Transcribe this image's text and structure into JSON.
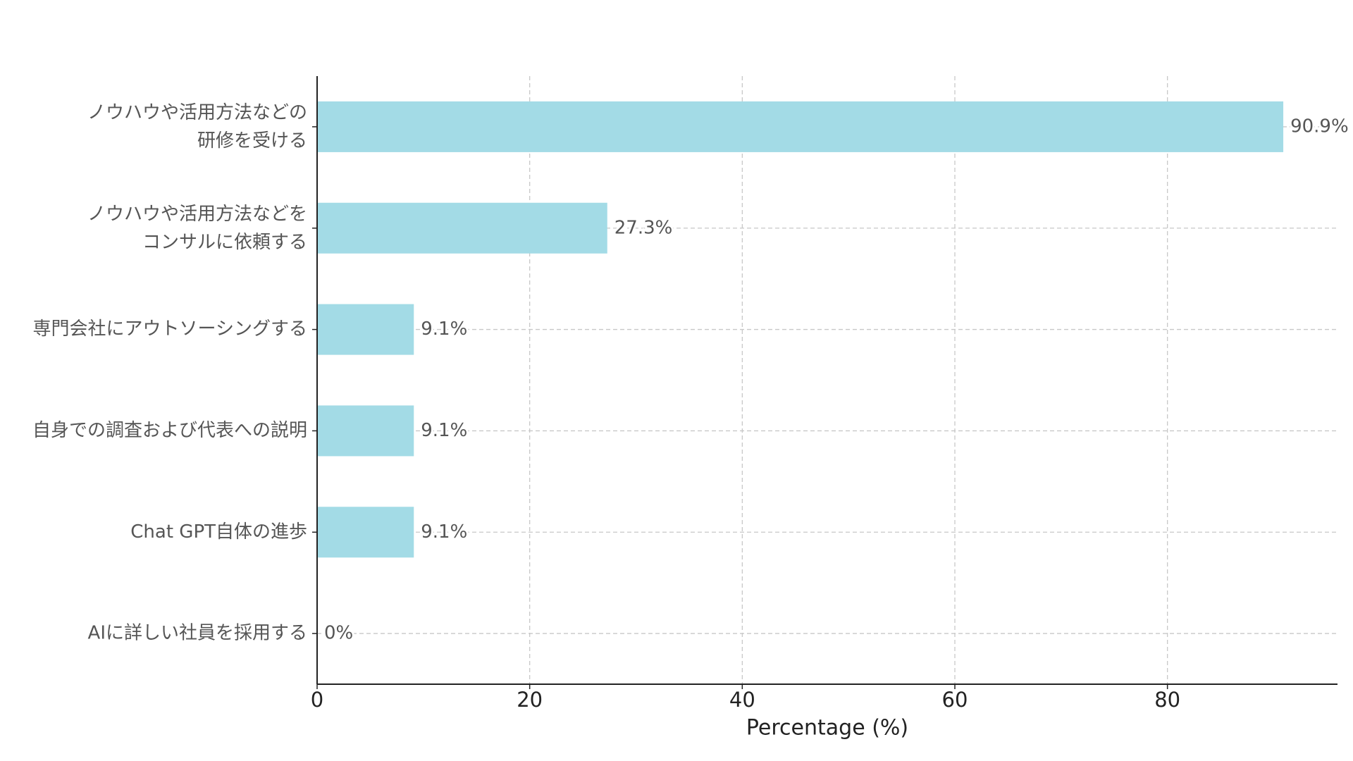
{
  "chart_data": {
    "type": "barh",
    "categories": [
      "ノウハウや活用方法などの\n研修を受ける",
      "ノウハウや活用方法などを\nコンサルに依頼する",
      "専門会社にアウトソーシングする",
      "自身での調査および代表への説明",
      "Chat GPT自体の進歩",
      "AIに詳しい社員を採用する"
    ],
    "values": [
      90.9,
      27.3,
      9.1,
      9.1,
      9.1,
      0
    ],
    "value_labels": [
      "90.9%",
      "27.3%",
      "9.1%",
      "9.1%",
      "9.1%",
      "0%"
    ],
    "color": "#a3dbe6",
    "xlabel": "Percentage (%)",
    "xlim": [
      0,
      96
    ],
    "xticks": [
      0,
      20,
      40,
      60,
      80
    ],
    "grid": true
  }
}
